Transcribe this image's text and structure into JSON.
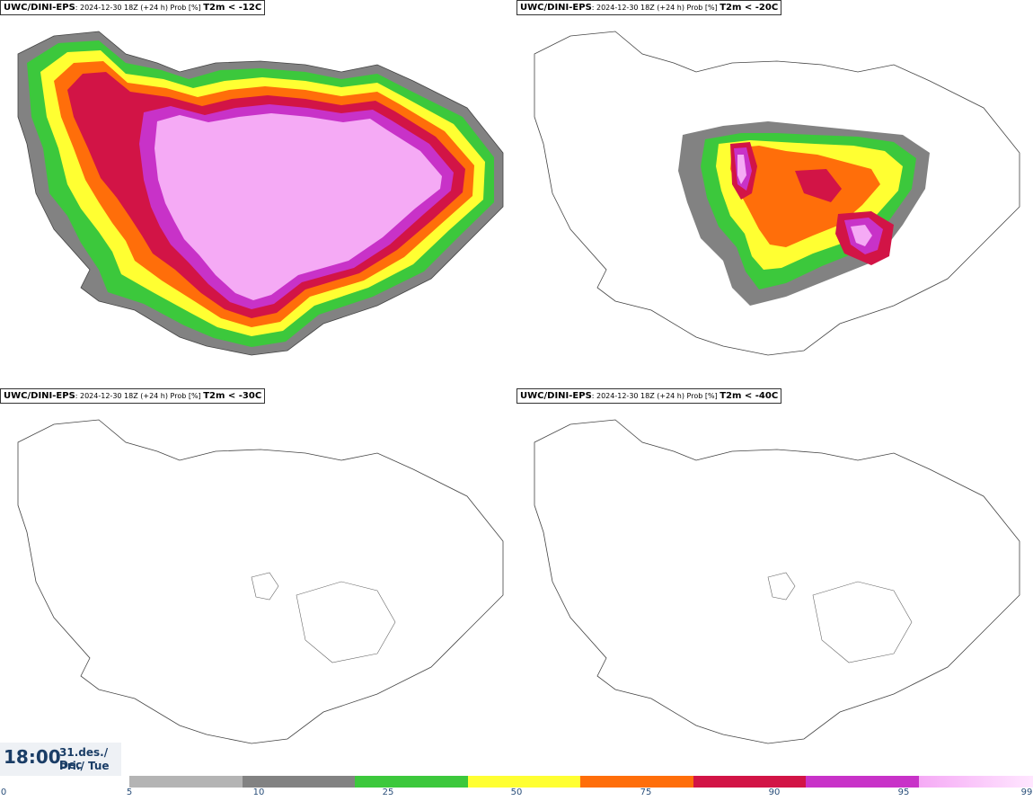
{
  "panels": [
    {
      "model": "UWC/DINI-EPS",
      "run": ": 2024-12-30 18Z (+24 h) Prob [%] ",
      "threshold": "T2m < -12C"
    },
    {
      "model": "UWC/DINI-EPS",
      "run": ": 2024-12-30 18Z (+24 h) Prob [%] ",
      "threshold": "T2m < -20C"
    },
    {
      "model": "UWC/DINI-EPS",
      "run": ": 2024-12-30 18Z (+24 h) Prob [%] ",
      "threshold": "T2m < -30C"
    },
    {
      "model": "UWC/DINI-EPS",
      "run": ": 2024-12-30 18Z (+24 h) Prob [%] ",
      "threshold": "T2m < -40C"
    }
  ],
  "valid_time": {
    "time": "18:00",
    "date_line1": "31.des./ Dec",
    "date_line2": "Þri./ Tue"
  },
  "colorbar": {
    "ticks": [
      "0",
      "5",
      "10",
      "25",
      "50",
      "75",
      "90",
      "95",
      "99"
    ],
    "colors": [
      "#b4b4b4",
      "#828282",
      "#3cc83c",
      "#ffff32",
      "#ff6e0a",
      "#d21446",
      "#c832c8",
      "#f5aaf5"
    ]
  },
  "map_fill": {
    "probability_colors": {
      "p10": "#828282",
      "p25": "#3cc83c",
      "p50": "#ffff32",
      "p75": "#ff6e0a",
      "p90": "#d21446",
      "p95": "#c832c8",
      "p99": "#f5aaf5"
    }
  }
}
